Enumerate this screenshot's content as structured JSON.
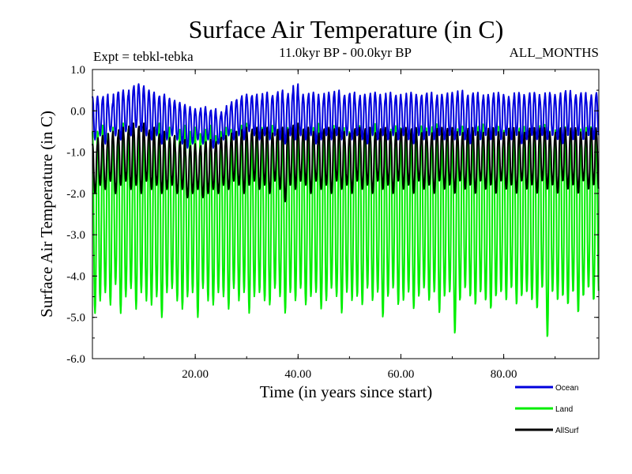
{
  "chart_data": {
    "type": "line",
    "title": "Surface Air Temperature (in C)",
    "subtitle": "11.0kyr BP - 00.0kyr BP",
    "experiment_label": "Expt = tebkl-tebka",
    "months_label": "ALL_MONTHS",
    "xlabel": "Time (in years since start)",
    "ylabel": "Surface Air Temperature (in C)",
    "xlim": [
      0.0,
      98.5
    ],
    "ylim": [
      -6.0,
      1.0
    ],
    "x_ticks": [
      {
        "value": 20,
        "label": "20.00"
      },
      {
        "value": 40,
        "label": "40.00"
      },
      {
        "value": 60,
        "label": "60.00"
      },
      {
        "value": 80,
        "label": "80.00"
      }
    ],
    "y_ticks": [
      {
        "value": 1.0,
        "label": "1.0"
      },
      {
        "value": 0.0,
        "label": "0.0"
      },
      {
        "value": -1.0,
        "label": "-1.0"
      },
      {
        "value": -2.0,
        "label": "-2.0"
      },
      {
        "value": -3.0,
        "label": "-3.0"
      },
      {
        "value": -4.0,
        "label": "-4.0"
      },
      {
        "value": -5.0,
        "label": "-5.0"
      },
      {
        "value": -6.0,
        "label": "-6.0"
      }
    ],
    "cycle_period_years": 1.0,
    "sample_step_years": 0.0833,
    "legend_position": "below-right",
    "series": [
      {
        "name": "Land",
        "color": "#00ee00",
        "range": [
          -5.5,
          -0.2
        ],
        "annual_max": [
          -0.5,
          -0.35,
          -0.55,
          -0.4,
          -0.6,
          -0.3,
          -0.45,
          -0.5,
          -0.4,
          -0.35,
          -0.55,
          -0.45,
          -0.3,
          -0.5,
          -0.4,
          -0.6,
          -0.45,
          -0.35,
          -0.5,
          -0.4,
          -0.55,
          -0.45,
          -0.35,
          -0.6,
          -0.5,
          -0.4,
          -0.45,
          -0.55,
          -0.35,
          -0.3,
          -0.5,
          -0.45,
          -0.4,
          -0.55,
          -0.35,
          -0.45,
          -0.6,
          -0.4,
          -0.5,
          -0.35,
          -0.45,
          -0.55,
          -0.4,
          -0.3,
          -0.5,
          -0.45,
          -0.35,
          -0.6,
          -0.4,
          -0.5,
          -0.45,
          -0.35,
          -0.55,
          -0.4,
          -0.3,
          -0.5,
          -0.45,
          -0.6,
          -0.35,
          -0.4,
          -0.5,
          -0.45,
          -0.55,
          -0.35,
          -0.4,
          -0.5,
          -0.3,
          -0.45,
          -0.6,
          -0.4,
          -0.5,
          -0.35,
          -0.45,
          -0.55,
          -0.4,
          -0.3,
          -0.5,
          -0.45,
          -0.35,
          -0.55,
          -0.4,
          -0.5,
          -0.45,
          -0.35,
          -0.6,
          -0.4,
          -0.5,
          -0.3,
          -0.45,
          -0.55,
          -0.4,
          -0.35,
          -0.5,
          -0.45,
          -0.4,
          -0.55,
          -0.35,
          -0.5,
          -0.45
        ],
        "annual_min": [
          -4.9,
          -4.6,
          -4.4,
          -4.7,
          -4.2,
          -4.9,
          -4.5,
          -4.3,
          -4.8,
          -4.4,
          -4.6,
          -4.7,
          -4.5,
          -5.0,
          -4.4,
          -4.3,
          -4.6,
          -4.8,
          -4.5,
          -4.4,
          -5.0,
          -4.3,
          -4.6,
          -4.7,
          -4.4,
          -4.5,
          -4.8,
          -4.3,
          -4.6,
          -4.4,
          -4.9,
          -4.5,
          -4.4,
          -4.6,
          -4.7,
          -4.3,
          -4.5,
          -4.9,
          -4.4,
          -4.6,
          -4.3,
          -4.7,
          -4.5,
          -4.4,
          -4.8,
          -4.6,
          -4.3,
          -4.5,
          -4.9,
          -4.4,
          -4.6,
          -4.5,
          -4.7,
          -4.3,
          -4.6,
          -4.4,
          -5.0,
          -4.5,
          -4.3,
          -4.7,
          -4.6,
          -4.4,
          -4.8,
          -4.5,
          -4.3,
          -4.6,
          -4.4,
          -4.9,
          -4.5,
          -4.4,
          -5.4,
          -4.6,
          -4.3,
          -4.5,
          -4.7,
          -4.4,
          -4.6,
          -4.8,
          -4.5,
          -4.4,
          -4.6,
          -4.3,
          -4.7,
          -4.5,
          -4.4,
          -4.6,
          -4.8,
          -4.3,
          -5.5,
          -4.4,
          -4.6,
          -4.5,
          -4.7,
          -4.4,
          -4.9,
          -4.5,
          -4.3,
          -4.6,
          -4.4
        ]
      },
      {
        "name": "AllSurf",
        "color": "#000000",
        "range": [
          -2.3,
          -0.1
        ],
        "annual_max": [
          -0.8,
          -0.6,
          -0.7,
          -0.5,
          -0.6,
          -0.4,
          -0.5,
          -0.3,
          -0.4,
          -0.3,
          -0.5,
          -0.4,
          -0.6,
          -0.5,
          -0.7,
          -0.6,
          -0.8,
          -0.7,
          -0.9,
          -0.8,
          -0.9,
          -0.8,
          -0.7,
          -0.8,
          -0.7,
          -0.6,
          -0.7,
          -0.5,
          -0.6,
          -0.4,
          -0.5,
          -0.4,
          -0.5,
          -0.4,
          -0.6,
          -0.5,
          -0.4,
          -0.5,
          -0.4,
          -0.3,
          -0.5,
          -0.4,
          -0.5,
          -0.6,
          -0.5,
          -0.4,
          -0.5,
          -0.4,
          -0.5,
          -0.6,
          -0.5,
          -0.4,
          -0.5,
          -0.4,
          -0.6,
          -0.5,
          -0.4,
          -0.5,
          -0.6,
          -0.5,
          -0.4,
          -0.5,
          -0.4,
          -0.6,
          -0.5,
          -0.6,
          -0.5,
          -0.4,
          -0.5,
          -0.4,
          -0.5,
          -0.6,
          -0.5,
          -0.4,
          -0.5,
          -0.6,
          -0.5,
          -0.4,
          -0.5,
          -0.6,
          -0.5,
          -0.4,
          -0.5,
          -0.6,
          -0.5,
          -0.4,
          -0.5,
          -0.4,
          -0.5,
          -0.6,
          -0.5,
          -0.4,
          -0.5,
          -0.4,
          -0.5,
          -0.6,
          -0.5,
          -0.4,
          -0.5
        ],
        "annual_min": [
          -2.0,
          -1.8,
          -1.9,
          -1.7,
          -2.0,
          -1.8,
          -1.7,
          -1.9,
          -1.8,
          -2.0,
          -1.7,
          -1.9,
          -1.8,
          -2.0,
          -1.9,
          -1.8,
          -2.0,
          -1.9,
          -2.1,
          -2.0,
          -1.9,
          -2.1,
          -2.0,
          -1.9,
          -2.0,
          -1.8,
          -1.9,
          -1.7,
          -1.8,
          -2.0,
          -1.8,
          -1.7,
          -1.9,
          -1.8,
          -2.0,
          -1.7,
          -1.9,
          -2.2,
          -1.8,
          -1.9,
          -1.7,
          -1.8,
          -2.0,
          -1.7,
          -1.9,
          -1.8,
          -2.0,
          -1.7,
          -1.9,
          -1.8,
          -2.0,
          -1.7,
          -1.9,
          -1.8,
          -2.0,
          -1.7,
          -1.9,
          -1.8,
          -2.0,
          -1.7,
          -1.9,
          -1.8,
          -2.0,
          -1.7,
          -1.9,
          -1.8,
          -2.0,
          -1.7,
          -1.9,
          -1.8,
          -2.0,
          -1.7,
          -1.9,
          -1.8,
          -2.0,
          -1.7,
          -1.9,
          -1.8,
          -2.0,
          -1.7,
          -1.9,
          -1.8,
          -2.0,
          -1.7,
          -1.9,
          -1.8,
          -2.0,
          -1.7,
          -1.9,
          -1.8,
          -2.0,
          -1.7,
          -1.9,
          -1.8,
          -2.0,
          -1.7,
          -1.9,
          -1.8,
          -1.9
        ]
      },
      {
        "name": "Ocean",
        "color": "#0000dd",
        "range": [
          -0.9,
          0.7
        ],
        "annual_max": [
          0.35,
          0.3,
          0.4,
          0.2,
          0.45,
          0.5,
          0.4,
          0.55,
          0.65,
          0.6,
          0.5,
          0.45,
          0.35,
          0.4,
          0.3,
          0.25,
          0.2,
          0.15,
          0.1,
          0.05,
          0.0,
          0.1,
          0.0,
          0.05,
          -0.1,
          0.0,
          0.15,
          0.25,
          0.3,
          0.4,
          0.35,
          0.4,
          0.3,
          0.45,
          0.35,
          0.4,
          0.5,
          0.35,
          0.45,
          0.65,
          0.4,
          0.35,
          0.45,
          0.4,
          0.3,
          0.45,
          0.4,
          0.5,
          0.35,
          0.4,
          0.45,
          0.3,
          0.4,
          0.35,
          0.45,
          0.4,
          0.3,
          0.45,
          0.35,
          0.4,
          0.3,
          0.45,
          0.4,
          0.35,
          0.4,
          0.45,
          0.3,
          0.4,
          0.35,
          0.45,
          0.4,
          0.5,
          0.35,
          0.4,
          0.45,
          0.3,
          0.4,
          0.35,
          0.45,
          0.4,
          0.35,
          0.3,
          0.45,
          0.4,
          0.35,
          0.45,
          0.4,
          0.3,
          0.45,
          0.4,
          0.35,
          0.45,
          0.5,
          0.35,
          0.4,
          0.45,
          0.3,
          0.4,
          0.45
        ],
        "annual_min": [
          -0.7,
          -0.6,
          -0.8,
          -0.5,
          -0.6,
          -0.7,
          -0.5,
          -0.6,
          -0.4,
          -0.5,
          -0.6,
          -0.7,
          -0.6,
          -0.8,
          -0.7,
          -0.6,
          -0.7,
          -0.8,
          -0.9,
          -0.8,
          -0.7,
          -0.8,
          -0.7,
          -0.9,
          -0.8,
          -0.7,
          -0.6,
          -0.7,
          -0.6,
          -0.7,
          -0.5,
          -0.6,
          -0.7,
          -0.6,
          -0.7,
          -0.6,
          -0.7,
          -0.8,
          -0.6,
          -0.7,
          -0.6,
          -0.7,
          -0.6,
          -0.8,
          -0.7,
          -0.6,
          -0.7,
          -0.6,
          -0.7,
          -0.6,
          -0.7,
          -0.6,
          -0.7,
          -0.8,
          -0.6,
          -0.7,
          -0.6,
          -0.7,
          -0.6,
          -0.7,
          -0.6,
          -0.7,
          -0.8,
          -0.6,
          -0.7,
          -0.6,
          -0.7,
          -0.6,
          -0.7,
          -0.6,
          -0.7,
          -0.6,
          -0.7,
          -0.8,
          -0.6,
          -0.7,
          -0.6,
          -0.7,
          -0.6,
          -0.7,
          -0.6,
          -0.7,
          -0.6,
          -0.8,
          -0.7,
          -0.6,
          -0.7,
          -0.6,
          -0.7,
          -0.6,
          -0.7,
          -0.8,
          -0.6,
          -0.7,
          -0.6,
          -0.7,
          -0.6,
          -0.7,
          -0.6
        ]
      }
    ],
    "legend_order": [
      "Ocean",
      "Land",
      "AllSurf"
    ]
  }
}
